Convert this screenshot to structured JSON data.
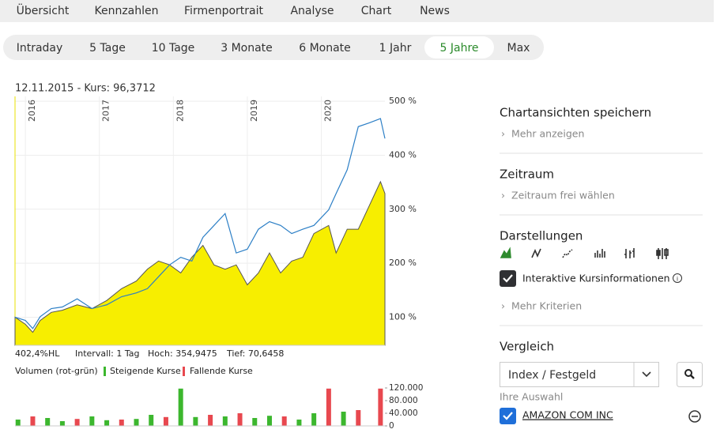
{
  "tabs": [
    "Übersicht",
    "Kennzahlen",
    "Firmenportrait",
    "Analyse",
    "Chart",
    "News"
  ],
  "periods": [
    {
      "label": "Intraday",
      "active": false
    },
    {
      "label": "5 Tage",
      "active": false
    },
    {
      "label": "10 Tage",
      "active": false
    },
    {
      "label": "3 Monate",
      "active": false
    },
    {
      "label": "6 Monate",
      "active": false
    },
    {
      "label": "1 Jahr",
      "active": false
    },
    {
      "label": "5 Jahre",
      "active": true
    },
    {
      "label": "Max",
      "active": false
    }
  ],
  "chart_data": [
    {
      "type": "area",
      "info": "12.11.2015  -  Kurs: 96,3712",
      "stats": [
        "402,4%HL",
        "Intervall: 1 Tag",
        "Hoch: 354,9475",
        "Tief: 70,6458"
      ],
      "x": [
        2015.86,
        2016.0,
        2016.1,
        2016.2,
        2016.35,
        2016.5,
        2016.7,
        2016.9,
        2017.1,
        2017.3,
        2017.5,
        2017.65,
        2017.8,
        2017.95,
        2018.1,
        2018.25,
        2018.4,
        2018.55,
        2018.7,
        2018.85,
        2019.0,
        2019.15,
        2019.3,
        2019.45,
        2019.6,
        2019.75,
        2019.9,
        2020.1,
        2020.2,
        2020.35,
        2020.5,
        2020.65,
        2020.8,
        2020.86
      ],
      "series": [
        {
          "type": "area",
          "color": "#f7ee00",
          "values": [
            100,
            87,
            72,
            94,
            109,
            113,
            123,
            116,
            131,
            153,
            167,
            189,
            204,
            197,
            182,
            211,
            233,
            197,
            189,
            197,
            160,
            182,
            219,
            182,
            204,
            211,
            255,
            270,
            219,
            263,
            263,
            307,
            351,
            329
          ]
        },
        {
          "type": "line",
          "name": "AMAZON COM INC",
          "color": "#2c7fc6",
          "values": [
            100,
            94,
            79,
            101,
            116,
            119,
            134,
            116,
            123,
            138,
            145,
            153,
            175,
            197,
            211,
            204,
            248,
            270,
            292,
            219,
            226,
            263,
            277,
            270,
            255,
            263,
            270,
            299,
            329,
            373,
            453,
            460,
            468,
            431
          ]
        }
      ],
      "xlim": [
        2015.86,
        2020.86
      ],
      "xticks": [
        2016,
        2017,
        2018,
        2019,
        2020
      ],
      "ylim": [
        48,
        509
      ],
      "yticks": [
        {
          "value": 100,
          "label": "100 %"
        },
        {
          "value": 200,
          "label": "200 %"
        },
        {
          "value": 300,
          "label": "300 %"
        },
        {
          "value": 400,
          "label": "400 %"
        },
        {
          "value": 500,
          "label": "500 %"
        }
      ],
      "grid": true
    },
    {
      "type": "bar",
      "legend_title": "Volumen (rot-grün)",
      "x": [
        2015.9,
        2016.1,
        2016.3,
        2016.5,
        2016.7,
        2016.9,
        2017.1,
        2017.3,
        2017.5,
        2017.7,
        2017.9,
        2018.1,
        2018.3,
        2018.5,
        2018.7,
        2018.9,
        2019.1,
        2019.3,
        2019.5,
        2019.7,
        2019.9,
        2020.1,
        2020.3,
        2020.5,
        2020.8
      ],
      "series": [
        {
          "name": "Steigende Kurse",
          "color": "#3cb72e",
          "values": [
            20000,
            null,
            25000,
            15000,
            null,
            30000,
            18000,
            null,
            22000,
            35000,
            null,
            118000,
            28000,
            null,
            30000,
            null,
            25000,
            32000,
            null,
            20000,
            40000,
            null,
            45000,
            null,
            null
          ]
        },
        {
          "name": "Fallende Kurse",
          "color": "#e8484f",
          "values": [
            null,
            30000,
            null,
            null,
            22000,
            null,
            null,
            20000,
            null,
            null,
            28000,
            null,
            null,
            35000,
            null,
            40000,
            null,
            null,
            30000,
            null,
            null,
            118000,
            null,
            50000,
            118000
          ]
        }
      ],
      "xlim": [
        2015.86,
        2020.86
      ],
      "ylim": [
        0,
        120000
      ],
      "yticks": [
        0,
        {
          "value": 40000,
          "label": "40.000"
        },
        {
          "value": 80000,
          "label": "80.000"
        },
        {
          "value": 120000,
          "label": "120.000"
        }
      ]
    }
  ],
  "sidebar": {
    "save": {
      "title": "Chartansichten speichern",
      "link": "Mehr anzeigen"
    },
    "period": {
      "title": "Zeitraum",
      "link": "Zeitraum frei wählen"
    },
    "views": {
      "title": "Darstellungen",
      "checkbox": "Interaktive Kursinformationen",
      "link": "Mehr Kriterien"
    },
    "compare": {
      "title": "Vergleich",
      "select": "Index / Festgeld",
      "selection_title": "Ihre Auswahl",
      "selection": "AMAZON COM INC"
    }
  }
}
